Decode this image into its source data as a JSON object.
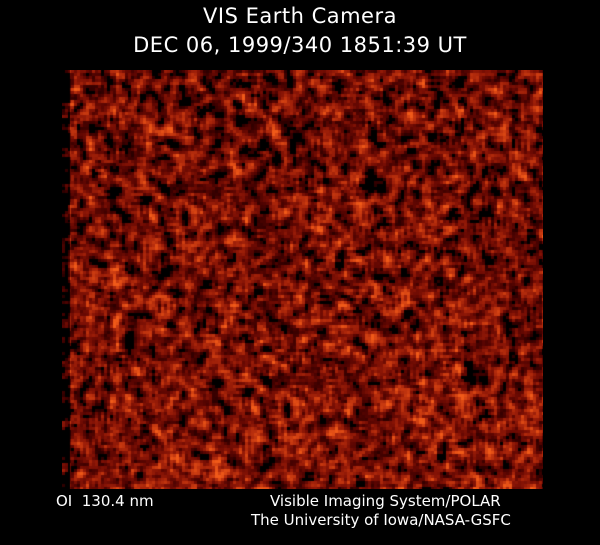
{
  "header": {
    "title": "VIS Earth Camera",
    "timestamp": "DEC 06, 1999/340 1851:39 UT"
  },
  "footer": {
    "wavelength": "OI  130.4 nm",
    "instrument": "Visible Imaging System/POLAR",
    "institution": "The University of Iowa/NASA-GSFC"
  },
  "image": {
    "colormap": [
      "#000000",
      "#5a1000",
      "#9a2a08",
      "#d0501a"
    ]
  }
}
